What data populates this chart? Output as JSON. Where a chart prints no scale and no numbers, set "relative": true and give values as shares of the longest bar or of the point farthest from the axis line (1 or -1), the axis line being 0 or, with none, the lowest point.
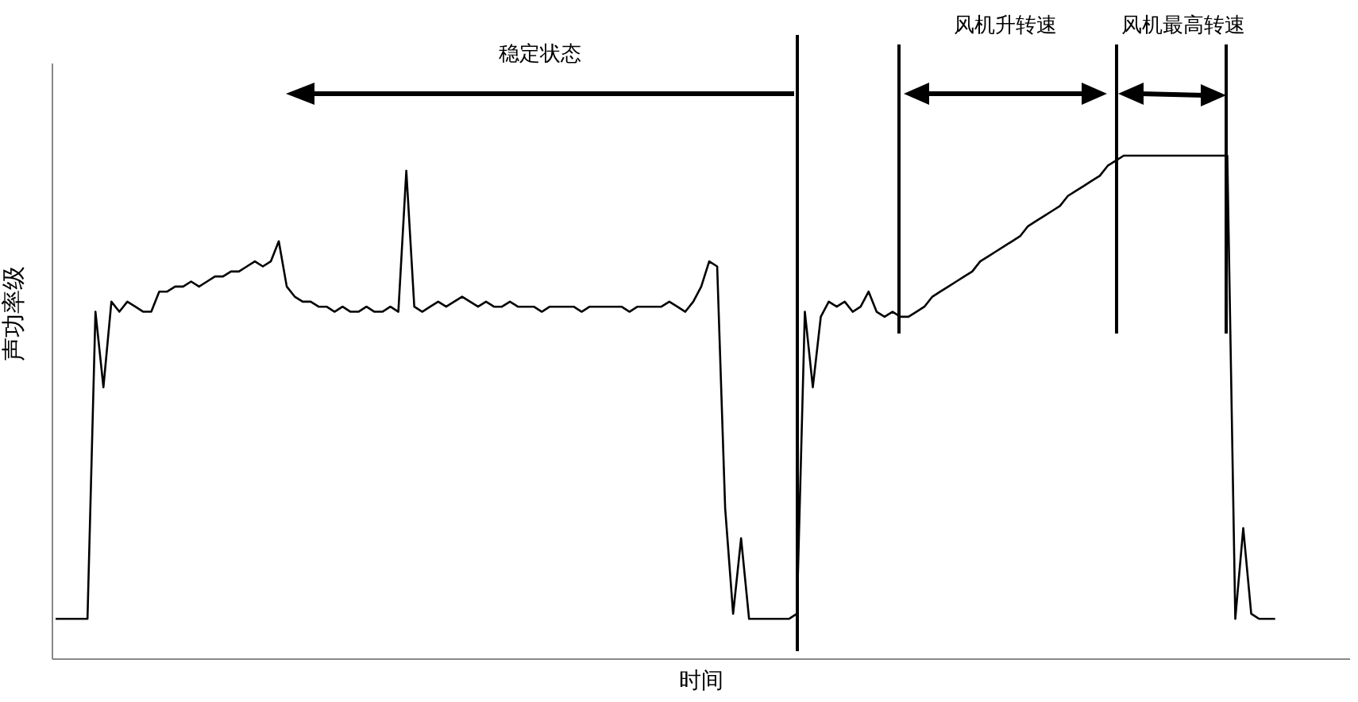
{
  "chart_data": {
    "type": "line",
    "xlabel": "时间",
    "ylabel": "声功率级",
    "relative": true,
    "marker": "none",
    "line_style": "solid",
    "annotations": [
      "稳定状态",
      "风机升转速",
      "风机最高转速"
    ],
    "categories": [
      null,
      null,
      null,
      null,
      null,
      null,
      null,
      null,
      null,
      null,
      null,
      null,
      null,
      null,
      null,
      null,
      null,
      null,
      null,
      null,
      null,
      null,
      null,
      null,
      null,
      null,
      null,
      null,
      null,
      null,
      null,
      null,
      null,
      null,
      null,
      null,
      null,
      null,
      null,
      null,
      null,
      null,
      null,
      null,
      null,
      null,
      null,
      null,
      null,
      null,
      null,
      null,
      null,
      null,
      null,
      null,
      null,
      null,
      null,
      null,
      null,
      null,
      null,
      null,
      null,
      null,
      null,
      null,
      null,
      null,
      null,
      null,
      null,
      null,
      null,
      null,
      null,
      null,
      null,
      null,
      null,
      null,
      null,
      null,
      null,
      null,
      null,
      null,
      null,
      null,
      null,
      null,
      null,
      null,
      null,
      null,
      null,
      null,
      null,
      null,
      null,
      null,
      null,
      null,
      null,
      null,
      null,
      null,
      null,
      null,
      null,
      null,
      null,
      null,
      null,
      null,
      null,
      null,
      null,
      null,
      null,
      null,
      null,
      null,
      null,
      null,
      null,
      null,
      null,
      null,
      null,
      null,
      null,
      null,
      null,
      null,
      null,
      null,
      null,
      null,
      null,
      null,
      null,
      null,
      null,
      null,
      null,
      null,
      null,
      null,
      null,
      null,
      null,
      null
    ],
    "series": [
      {
        "color": "#000000",
        "values": [
          0.08,
          0.08,
          0.08,
          0.08,
          0.08,
          0.69,
          0.54,
          0.71,
          0.69,
          0.71,
          0.7,
          0.69,
          0.69,
          0.73,
          0.73,
          0.74,
          0.74,
          0.75,
          0.74,
          0.75,
          0.76,
          0.76,
          0.77,
          0.77,
          0.78,
          0.79,
          0.78,
          0.79,
          0.83,
          0.74,
          0.72,
          0.71,
          0.71,
          0.7,
          0.7,
          0.69,
          0.7,
          0.69,
          0.69,
          0.7,
          0.69,
          0.69,
          0.7,
          0.69,
          0.97,
          0.7,
          0.69,
          0.7,
          0.71,
          0.7,
          0.71,
          0.72,
          0.71,
          0.7,
          0.71,
          0.7,
          0.7,
          0.71,
          0.7,
          0.7,
          0.7,
          0.69,
          0.7,
          0.7,
          0.7,
          0.7,
          0.69,
          0.7,
          0.7,
          0.7,
          0.7,
          0.7,
          0.69,
          0.7,
          0.7,
          0.7,
          0.7,
          0.71,
          0.7,
          0.69,
          0.71,
          0.74,
          0.79,
          0.78,
          0.3,
          0.09,
          0.24,
          0.08,
          0.08,
          0.08,
          0.08,
          0.08,
          0.08,
          0.09,
          0.69,
          0.54,
          0.68,
          0.71,
          0.7,
          0.71,
          0.69,
          0.7,
          0.73,
          0.69,
          0.68,
          0.69,
          0.68,
          0.68,
          0.69,
          0.7,
          0.72,
          0.73,
          0.74,
          0.75,
          0.76,
          0.77,
          0.79,
          0.8,
          0.81,
          0.82,
          0.83,
          0.84,
          0.86,
          0.87,
          0.88,
          0.89,
          0.9,
          0.92,
          0.93,
          0.94,
          0.95,
          0.96,
          0.98,
          0.99,
          1.0,
          1.0,
          1.0,
          1.0,
          1.0,
          1.0,
          1.0,
          1.0,
          1.0,
          1.0,
          1.0,
          1.0,
          1.0,
          1.0,
          0.08,
          0.26,
          0.09,
          0.08,
          0.08,
          0.08
        ]
      }
    ]
  }
}
